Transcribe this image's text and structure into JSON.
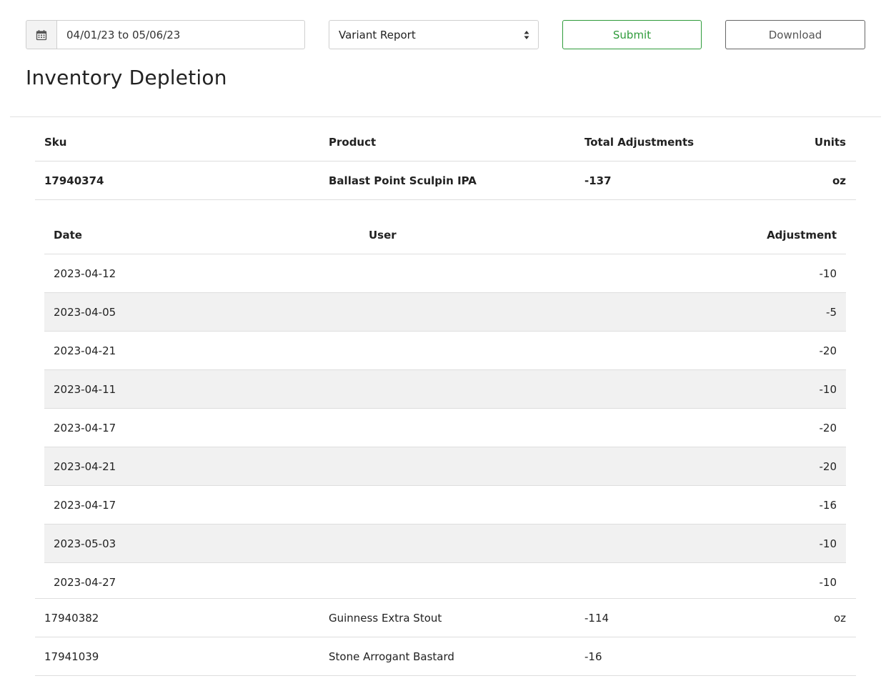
{
  "toolbar": {
    "date_range": "04/01/23 to 05/06/23",
    "report_type": "Variant Report",
    "submit_label": "Submit",
    "download_label": "Download"
  },
  "page": {
    "title": "Inventory Depletion"
  },
  "table": {
    "headers": {
      "sku": "Sku",
      "product": "Product",
      "total": "Total Adjustments",
      "units": "Units"
    },
    "expanded": {
      "sku": "17940374",
      "product": "Ballast Point Sculpin IPA",
      "total": "-137",
      "units": "oz"
    },
    "detail_headers": {
      "date": "Date",
      "user": "User",
      "adjustment": "Adjustment"
    },
    "detail_rows": [
      {
        "date": "2023-04-12",
        "user": "",
        "adjustment": "-10"
      },
      {
        "date": "2023-04-05",
        "user": "",
        "adjustment": "-5"
      },
      {
        "date": "2023-04-21",
        "user": "",
        "adjustment": "-20"
      },
      {
        "date": "2023-04-11",
        "user": "",
        "adjustment": "-10"
      },
      {
        "date": "2023-04-17",
        "user": "",
        "adjustment": "-20"
      },
      {
        "date": "2023-04-21",
        "user": "",
        "adjustment": "-20"
      },
      {
        "date": "2023-04-17",
        "user": "",
        "adjustment": "-16"
      },
      {
        "date": "2023-05-03",
        "user": "",
        "adjustment": "-10"
      },
      {
        "date": "2023-04-27",
        "user": "",
        "adjustment": "-10"
      }
    ],
    "rows": [
      {
        "sku": "17940382",
        "product": "Guinness Extra Stout",
        "total": "-114",
        "units": "oz"
      },
      {
        "sku": "17941039",
        "product": "Stone Arrogant Bastard",
        "total": "-16",
        "units": ""
      }
    ]
  },
  "colors": {
    "accent": "#2e9b3a",
    "stripe": "#f1f1f1",
    "border": "#dedede"
  },
  "icons": {
    "date": "calendar-icon",
    "select": "sort-caret-icon"
  }
}
